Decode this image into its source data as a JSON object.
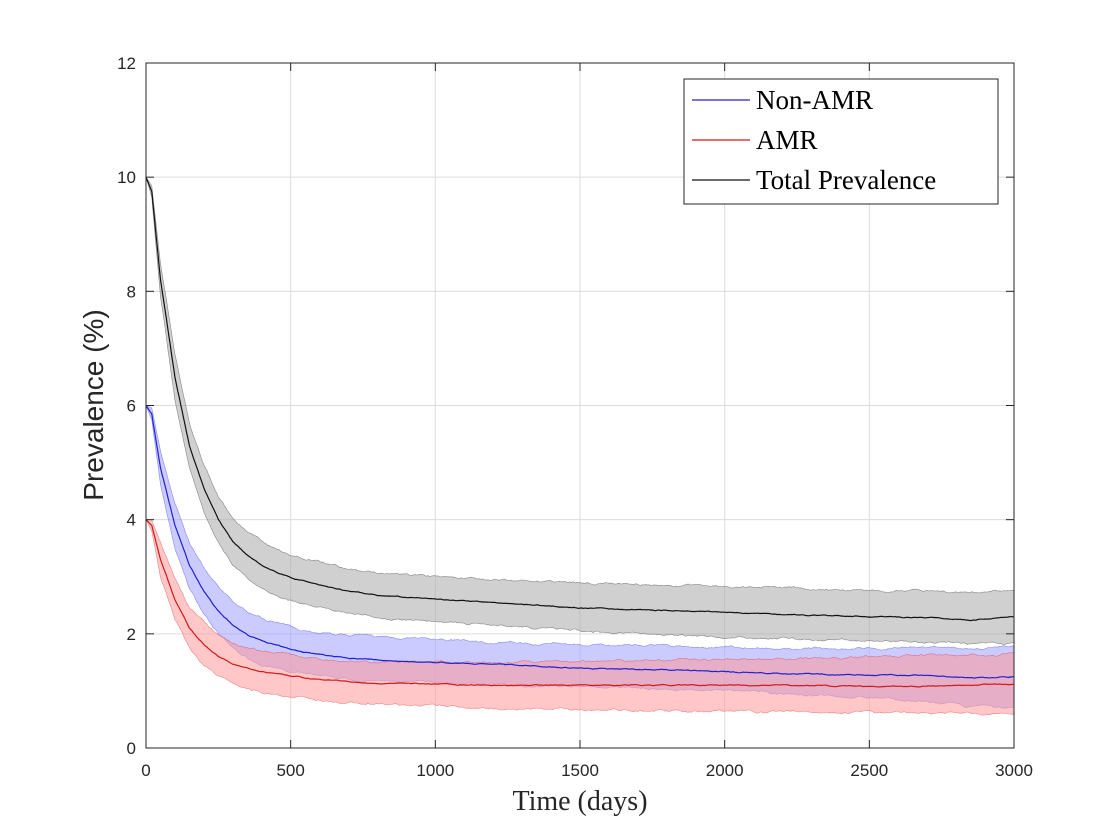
{
  "chart_data": {
    "type": "line",
    "title": "",
    "xlabel": "Time (days)",
    "ylabel": "Prevalence (%)",
    "xlim": [
      0,
      3000
    ],
    "ylim": [
      0,
      12
    ],
    "xticks": [
      0,
      500,
      1000,
      1500,
      2000,
      2500,
      3000
    ],
    "yticks": [
      0,
      2,
      4,
      6,
      8,
      10,
      12
    ],
    "grid": true,
    "legend_position": "top-right",
    "series": [
      {
        "name": "Non-AMR",
        "color": "#2020d0",
        "band_color": "#a0a0ff",
        "x": [
          0,
          20,
          50,
          100,
          150,
          200,
          250,
          300,
          350,
          400,
          500,
          600,
          700,
          800,
          1000,
          1200,
          1500,
          1700,
          2000,
          2200,
          2500,
          2700,
          2850,
          3000
        ],
        "values": [
          6.0,
          5.85,
          4.9,
          3.9,
          3.2,
          2.75,
          2.4,
          2.15,
          1.98,
          1.88,
          1.72,
          1.64,
          1.58,
          1.54,
          1.5,
          1.47,
          1.4,
          1.38,
          1.34,
          1.3,
          1.28,
          1.27,
          1.22,
          1.25
        ],
        "lower": [
          6.0,
          5.75,
          4.6,
          3.5,
          2.8,
          2.35,
          2.0,
          1.75,
          1.58,
          1.47,
          1.32,
          1.25,
          1.2,
          1.17,
          1.14,
          1.11,
          1.07,
          1.04,
          1.0,
          0.95,
          0.88,
          0.8,
          0.72,
          0.7
        ],
        "upper": [
          6.0,
          5.95,
          5.2,
          4.3,
          3.6,
          3.15,
          2.8,
          2.55,
          2.38,
          2.28,
          2.12,
          2.02,
          1.98,
          1.95,
          1.9,
          1.85,
          1.82,
          1.8,
          1.76,
          1.74,
          1.75,
          1.76,
          1.75,
          1.78
        ]
      },
      {
        "name": "AMR",
        "color": "#d01818",
        "band_color": "#ff9999",
        "x": [
          0,
          20,
          50,
          100,
          150,
          200,
          250,
          300,
          350,
          400,
          500,
          600,
          700,
          800,
          1000,
          1200,
          1500,
          1700,
          2000,
          2200,
          2500,
          2700,
          2850,
          3000
        ],
        "values": [
          4.0,
          3.9,
          3.3,
          2.6,
          2.1,
          1.82,
          1.6,
          1.48,
          1.4,
          1.34,
          1.26,
          1.2,
          1.16,
          1.13,
          1.12,
          1.1,
          1.1,
          1.1,
          1.1,
          1.1,
          1.08,
          1.08,
          1.1,
          1.12
        ],
        "lower": [
          4.0,
          3.8,
          3.0,
          2.25,
          1.75,
          1.45,
          1.25,
          1.12,
          1.03,
          0.97,
          0.9,
          0.84,
          0.8,
          0.77,
          0.73,
          0.7,
          0.67,
          0.66,
          0.65,
          0.64,
          0.62,
          0.61,
          0.6,
          0.6
        ],
        "upper": [
          4.0,
          4.0,
          3.6,
          2.95,
          2.45,
          2.2,
          1.98,
          1.86,
          1.78,
          1.72,
          1.63,
          1.57,
          1.53,
          1.5,
          1.5,
          1.5,
          1.52,
          1.54,
          1.56,
          1.57,
          1.6,
          1.62,
          1.63,
          1.65
        ]
      },
      {
        "name": "Total Prevalence",
        "color": "#111111",
        "band_color": "#aaaaaa",
        "x": [
          0,
          20,
          50,
          100,
          150,
          200,
          250,
          300,
          350,
          400,
          500,
          600,
          700,
          800,
          1000,
          1200,
          1500,
          1700,
          2000,
          2200,
          2500,
          2700,
          2850,
          3000
        ],
        "values": [
          10.0,
          9.75,
          8.2,
          6.5,
          5.3,
          4.55,
          4.0,
          3.62,
          3.38,
          3.2,
          2.98,
          2.85,
          2.75,
          2.68,
          2.6,
          2.55,
          2.45,
          2.42,
          2.38,
          2.34,
          2.3,
          2.28,
          2.24,
          2.3
        ],
        "lower": [
          10.0,
          9.65,
          7.9,
          6.1,
          4.9,
          4.15,
          3.6,
          3.22,
          2.98,
          2.8,
          2.58,
          2.45,
          2.36,
          2.3,
          2.22,
          2.15,
          2.05,
          2.0,
          1.95,
          1.92,
          1.88,
          1.86,
          1.82,
          1.85
        ],
        "upper": [
          10.0,
          9.85,
          8.5,
          6.9,
          5.7,
          4.95,
          4.4,
          4.02,
          3.78,
          3.6,
          3.38,
          3.25,
          3.15,
          3.08,
          3.0,
          2.95,
          2.9,
          2.88,
          2.83,
          2.8,
          2.76,
          2.74,
          2.7,
          2.75
        ]
      }
    ]
  }
}
